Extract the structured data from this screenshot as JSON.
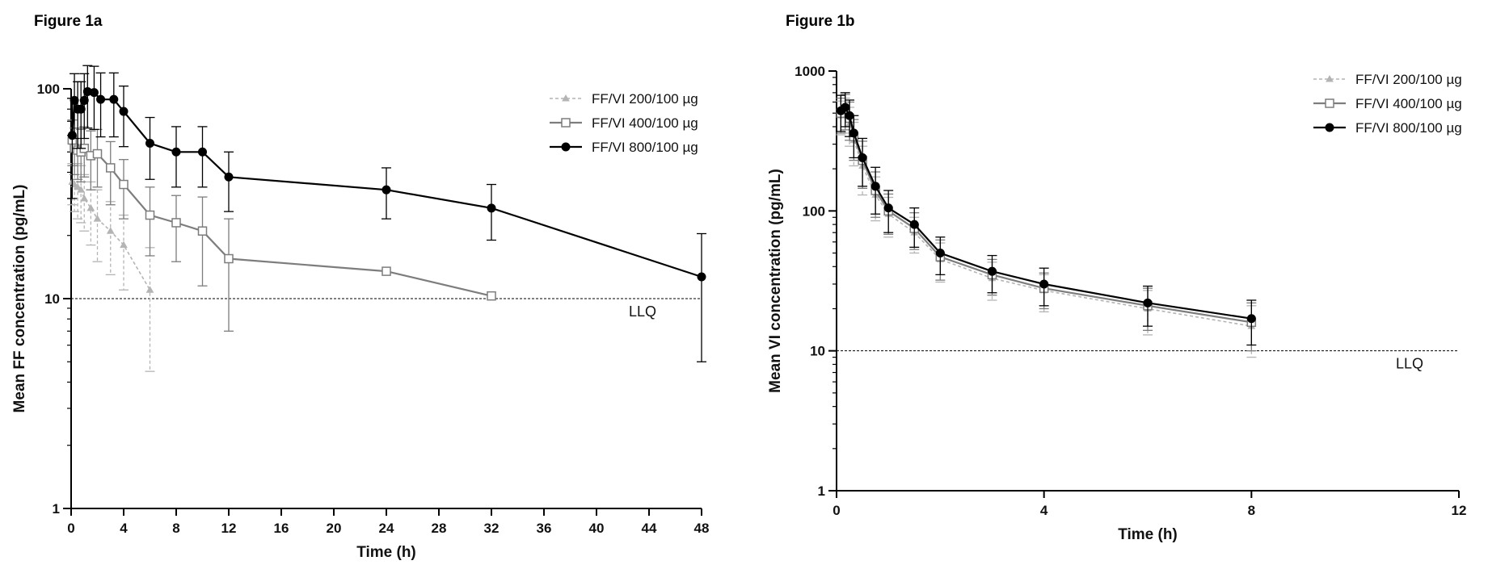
{
  "chart_data": [
    {
      "type": "line",
      "panel_title": "Figure 1a",
      "xlabel": "Time (h)",
      "ylabel": "Mean FF concentration (pg/mL)",
      "yscale": "log",
      "xlim": [
        0,
        48
      ],
      "ylim": [
        1,
        100
      ],
      "x_ticks": [
        0,
        4,
        8,
        12,
        16,
        20,
        24,
        28,
        32,
        36,
        40,
        44,
        48
      ],
      "y_ticks": [
        1,
        10,
        100
      ],
      "legend": "top-right",
      "reference_line": {
        "label": "LLQ",
        "y": 10
      },
      "series": [
        {
          "name": "FF/VI 200/100 µg",
          "color": "#b4b4b4",
          "marker": "triangle",
          "dashed": true,
          "points": [
            {
              "x": 0.083,
              "y": 36,
              "err": 8
            },
            {
              "x": 0.25,
              "y": 35,
              "err": 9
            },
            {
              "x": 0.5,
              "y": 34,
              "err": 10
            },
            {
              "x": 0.75,
              "y": 33,
              "err": 10
            },
            {
              "x": 1,
              "y": 30,
              "err": 9
            },
            {
              "x": 1.5,
              "y": 27,
              "err": 9
            },
            {
              "x": 2,
              "y": 24,
              "err": 9
            },
            {
              "x": 3,
              "y": 21,
              "err": 8
            },
            {
              "x": 4,
              "y": 18,
              "err": 7
            },
            {
              "x": 6,
              "y": 11,
              "err": 6.5
            }
          ]
        },
        {
          "name": "FF/VI 400/100 µg",
          "color": "#7d7d7d",
          "marker": "square-open",
          "dashed": false,
          "points": [
            {
              "x": 0.083,
              "y": 57,
              "err": 14
            },
            {
              "x": 0.25,
              "y": 52,
              "err": 13
            },
            {
              "x": 0.5,
              "y": 51,
              "err": 14
            },
            {
              "x": 0.75,
              "y": 50,
              "err": 14
            },
            {
              "x": 1,
              "y": 52,
              "err": 14
            },
            {
              "x": 1.5,
              "y": 48,
              "err": 15
            },
            {
              "x": 2,
              "y": 49,
              "err": 15
            },
            {
              "x": 3,
              "y": 42,
              "err": 14
            },
            {
              "x": 4,
              "y": 35,
              "err": 11
            },
            {
              "x": 6,
              "y": 25,
              "err": 9
            },
            {
              "x": 8,
              "y": 23,
              "err": 8
            },
            {
              "x": 10,
              "y": 21,
              "err": 9.5
            },
            {
              "x": 12,
              "y": 15.5,
              "err": 8.5
            },
            {
              "x": 24,
              "y": 13.5,
              "err": 0
            },
            {
              "x": 32,
              "y": 10.3,
              "err": 0
            }
          ]
        },
        {
          "name": "FF/VI 800/100 µg",
          "color": "#000000",
          "marker": "circle-filled",
          "dashed": false,
          "points": [
            {
              "x": 0.083,
              "y": 60,
              "err": 30
            },
            {
              "x": 0.25,
              "y": 88,
              "err": 30
            },
            {
              "x": 0.5,
              "y": 80,
              "err": 28
            },
            {
              "x": 0.75,
              "y": 80,
              "err": 28
            },
            {
              "x": 1,
              "y": 88,
              "err": 30
            },
            {
              "x": 1.25,
              "y": 97,
              "err": 32
            },
            {
              "x": 1.75,
              "y": 96,
              "err": 32
            },
            {
              "x": 2.25,
              "y": 89,
              "err": 30
            },
            {
              "x": 3.25,
              "y": 89,
              "err": 30
            },
            {
              "x": 4,
              "y": 78,
              "err": 25
            },
            {
              "x": 6,
              "y": 55,
              "err": 18
            },
            {
              "x": 8,
              "y": 50,
              "err": 16
            },
            {
              "x": 10,
              "y": 50,
              "err": 16
            },
            {
              "x": 12,
              "y": 38,
              "err": 12
            },
            {
              "x": 24,
              "y": 33,
              "err": 9
            },
            {
              "x": 32,
              "y": 27,
              "err": 8
            },
            {
              "x": 48,
              "y": 12.7,
              "err": 7.7
            }
          ]
        }
      ]
    },
    {
      "type": "line",
      "panel_title": "Figure 1b",
      "xlabel": "Time (h)",
      "ylabel": "Mean VI concentration (pg/mL)",
      "yscale": "log",
      "xlim": [
        0,
        12
      ],
      "ylim": [
        1,
        1000
      ],
      "x_ticks": [
        0,
        4,
        8,
        12
      ],
      "y_ticks": [
        1,
        10,
        100,
        1000
      ],
      "legend": "top-right",
      "reference_line": {
        "label": "LLQ",
        "y": 10
      },
      "series": [
        {
          "name": "FF/VI 200/100 µg",
          "color": "#b4b4b4",
          "marker": "triangle",
          "dashed": true,
          "points": [
            {
              "x": 0.083,
              "y": 480,
              "err": 130
            },
            {
              "x": 0.167,
              "y": 500,
              "err": 140
            },
            {
              "x": 0.25,
              "y": 420,
              "err": 130
            },
            {
              "x": 0.333,
              "y": 320,
              "err": 110
            },
            {
              "x": 0.5,
              "y": 210,
              "err": 80
            },
            {
              "x": 0.75,
              "y": 130,
              "err": 45
            },
            {
              "x": 1,
              "y": 95,
              "err": 30
            },
            {
              "x": 1.5,
              "y": 70,
              "err": 20
            },
            {
              "x": 2,
              "y": 45,
              "err": 14
            },
            {
              "x": 3,
              "y": 33,
              "err": 10
            },
            {
              "x": 4,
              "y": 27,
              "err": 8
            },
            {
              "x": 6,
              "y": 20,
              "err": 7
            },
            {
              "x": 8,
              "y": 15,
              "err": 6
            }
          ]
        },
        {
          "name": "FF/VI 400/100 µg",
          "color": "#7d7d7d",
          "marker": "square-open",
          "dashed": false,
          "points": [
            {
              "x": 0.083,
              "y": 500,
              "err": 140
            },
            {
              "x": 0.167,
              "y": 530,
              "err": 150
            },
            {
              "x": 0.25,
              "y": 460,
              "err": 140
            },
            {
              "x": 0.333,
              "y": 340,
              "err": 110
            },
            {
              "x": 0.5,
              "y": 230,
              "err": 85
            },
            {
              "x": 0.75,
              "y": 140,
              "err": 50
            },
            {
              "x": 1,
              "y": 100,
              "err": 32
            },
            {
              "x": 1.5,
              "y": 75,
              "err": 22
            },
            {
              "x": 2,
              "y": 47,
              "err": 15
            },
            {
              "x": 3,
              "y": 35,
              "err": 10
            },
            {
              "x": 4,
              "y": 28,
              "err": 8
            },
            {
              "x": 6,
              "y": 21,
              "err": 7
            },
            {
              "x": 8,
              "y": 16,
              "err": 6
            }
          ]
        },
        {
          "name": "FF/VI 800/100 µg",
          "color": "#000000",
          "marker": "circle-filled",
          "dashed": false,
          "points": [
            {
              "x": 0.083,
              "y": 520,
              "err": 150
            },
            {
              "x": 0.167,
              "y": 550,
              "err": 150
            },
            {
              "x": 0.25,
              "y": 480,
              "err": 140
            },
            {
              "x": 0.333,
              "y": 360,
              "err": 120
            },
            {
              "x": 0.5,
              "y": 240,
              "err": 90
            },
            {
              "x": 0.75,
              "y": 150,
              "err": 55
            },
            {
              "x": 1,
              "y": 105,
              "err": 35
            },
            {
              "x": 1.5,
              "y": 80,
              "err": 25
            },
            {
              "x": 2,
              "y": 50,
              "err": 15
            },
            {
              "x": 3,
              "y": 37,
              "err": 11
            },
            {
              "x": 4,
              "y": 30,
              "err": 9
            },
            {
              "x": 6,
              "y": 22,
              "err": 7
            },
            {
              "x": 8,
              "y": 17,
              "err": 6
            }
          ]
        }
      ]
    }
  ]
}
